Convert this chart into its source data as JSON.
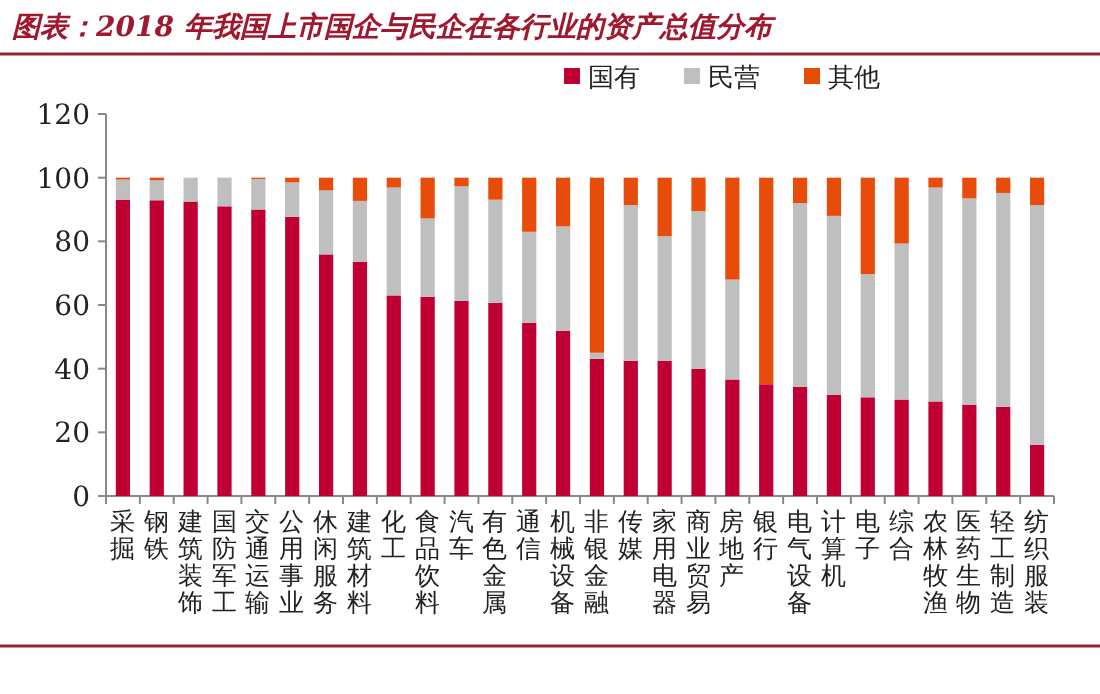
{
  "chart_data": {
    "type": "bar",
    "title": "图表：2018 年我国上市国企与民企在各行业的资产总值分布",
    "categories": [
      "采掘",
      "钢铁",
      "建筑装饰",
      "国防军工",
      "交通运输",
      "公用事业",
      "休闲服务",
      "建筑材料",
      "化工",
      "食品饮料",
      "汽车",
      "有色金属",
      "通信",
      "机械设备",
      "非银金融",
      "传媒",
      "家用电器",
      "商业贸易",
      "房地产",
      "银行",
      "电气设备",
      "计算机",
      "电子",
      "综合",
      "农林牧渔",
      "医药生物",
      "轻工制造",
      "纺织服装"
    ],
    "stacked": true,
    "series": [
      {
        "name": "国有",
        "color": "#c00033",
        "values": [
          93.1,
          92.9,
          92.5,
          91.0,
          90.0,
          87.7,
          75.9,
          73.6,
          63.0,
          62.6,
          61.3,
          60.7,
          54.4,
          51.9,
          43.1,
          42.5,
          42.5,
          40.0,
          36.6,
          35.1,
          34.3,
          31.8,
          31.0,
          30.3,
          29.7,
          28.7,
          28.0,
          16.1
        ]
      },
      {
        "name": "民营",
        "color": "#bfbfbf",
        "values": [
          6.3,
          6.3,
          7.5,
          9.0,
          9.6,
          10.8,
          20.1,
          19.1,
          33.9,
          24.6,
          36.0,
          32.4,
          28.6,
          32.8,
          1.9,
          48.9,
          39.1,
          49.5,
          31.4,
          0.0,
          57.7,
          56.2,
          38.7,
          49.0,
          67.2,
          64.8,
          67.2,
          75.3
        ]
      },
      {
        "name": "其他",
        "color": "#e84c0a",
        "values": [
          0.6,
          0.8,
          0.0,
          0.0,
          0.4,
          1.5,
          4.0,
          7.3,
          3.1,
          12.8,
          2.7,
          6.9,
          17.0,
          15.3,
          55.0,
          8.6,
          18.4,
          10.5,
          32.0,
          64.9,
          8.0,
          12.0,
          30.3,
          20.7,
          3.1,
          6.5,
          4.8,
          8.6
        ]
      }
    ],
    "ylim": [
      0,
      120
    ],
    "yticks": [
      0,
      20,
      40,
      60,
      80,
      100,
      120
    ],
    "legend": "top"
  }
}
